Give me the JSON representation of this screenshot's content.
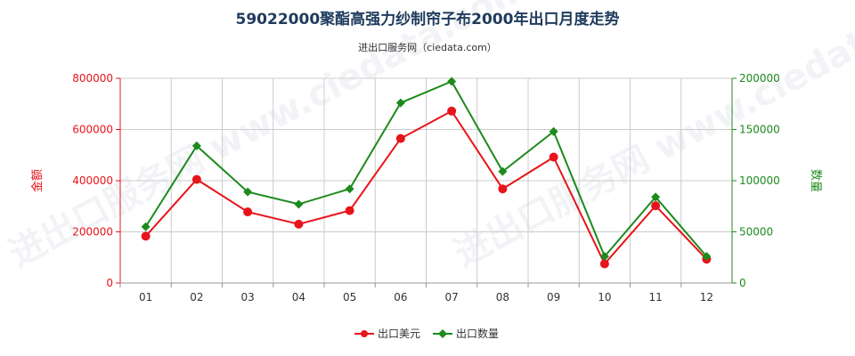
{
  "chart_data": {
    "type": "line",
    "title": "59022000聚酯高强力纱制帘子布2000年出口月度走势",
    "subtitle": "进出口服务网（ciedata.com）",
    "watermark": "进出口服务网 www.ciedata.com",
    "categories": [
      "01",
      "02",
      "03",
      "04",
      "05",
      "06",
      "07",
      "08",
      "09",
      "10",
      "11",
      "12"
    ],
    "y_left": {
      "label": "金额",
      "ticks": [
        "0",
        "200000",
        "400000",
        "600000",
        "800000"
      ],
      "range": [
        0,
        800000
      ],
      "color": "#e8141b"
    },
    "y_right": {
      "label": "数量",
      "ticks": [
        "0",
        "50000",
        "100000",
        "150000",
        "200000"
      ],
      "range": [
        0,
        200000
      ],
      "color": "#1c8a1c"
    },
    "series": [
      {
        "name": "出口美元",
        "axis": "left",
        "color": "#e8141b",
        "marker": "circle",
        "values": [
          183000,
          405000,
          278000,
          230000,
          283000,
          565000,
          672000,
          368000,
          492000,
          75000,
          302000,
          93000
        ]
      },
      {
        "name": "出口数量",
        "axis": "right",
        "color": "#1c8a1c",
        "marker": "diamond",
        "values": [
          55000,
          134000,
          89000,
          77000,
          92000,
          176000,
          197000,
          109000,
          148000,
          26000,
          84000,
          26000
        ]
      }
    ],
    "grid": true,
    "legend_position": "bottom-center"
  }
}
